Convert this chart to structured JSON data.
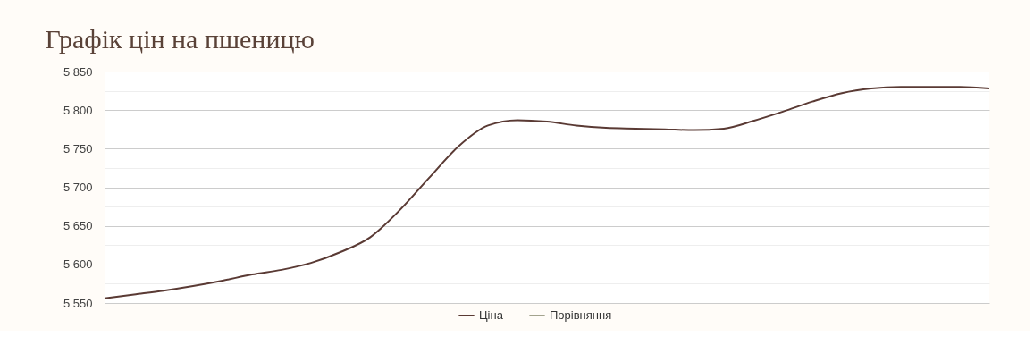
{
  "chart_data": {
    "type": "line",
    "title": "Графік цін на пшеницю",
    "categories": [
      null,
      null,
      null,
      null,
      null,
      null,
      null,
      null,
      null,
      null,
      null,
      null,
      null,
      null,
      null,
      null,
      null,
      null,
      null,
      null,
      null,
      null,
      null,
      null,
      null,
      null,
      null,
      null,
      null,
      null,
      null
    ],
    "series": [
      {
        "name": "Ціна",
        "color": "#5a3a34",
        "values": [
          5556,
          5561,
          5566,
          5572,
          5579,
          5587,
          5593,
          5602,
          5616,
          5635,
          5670,
          5712,
          5753,
          5780,
          5787,
          5785,
          5780,
          5777,
          5776,
          5775,
          5774,
          5776,
          5786,
          5798,
          5811,
          5822,
          5828,
          5830,
          5830,
          5830,
          5828
        ]
      },
      {
        "name": "Порівняння",
        "color": "#a3a38e",
        "values": [
          null,
          null,
          null,
          null,
          null,
          null,
          null,
          null,
          null,
          null,
          null,
          null,
          null,
          null,
          null,
          null,
          null,
          null,
          null,
          null,
          null,
          null,
          null,
          null,
          null,
          null,
          null,
          null,
          null,
          null,
          null
        ]
      }
    ],
    "ylim": [
      5550,
      5850
    ],
    "yticks": [
      {
        "value": 5550,
        "label": "5 550"
      },
      {
        "value": 5575,
        "label": null
      },
      {
        "value": 5600,
        "label": "5 600"
      },
      {
        "value": 5625,
        "label": null
      },
      {
        "value": 5650,
        "label": "5 650"
      },
      {
        "value": 5675,
        "label": null
      },
      {
        "value": 5700,
        "label": "5 700"
      },
      {
        "value": 5725,
        "label": null
      },
      {
        "value": 5750,
        "label": "5 750"
      },
      {
        "value": 5775,
        "label": null
      },
      {
        "value": 5800,
        "label": "5 800"
      },
      {
        "value": 5825,
        "label": null
      },
      {
        "value": 5850,
        "label": "5 850"
      }
    ],
    "grid": "y",
    "legend": "bottom",
    "marker": "none",
    "line_style": "solid"
  }
}
